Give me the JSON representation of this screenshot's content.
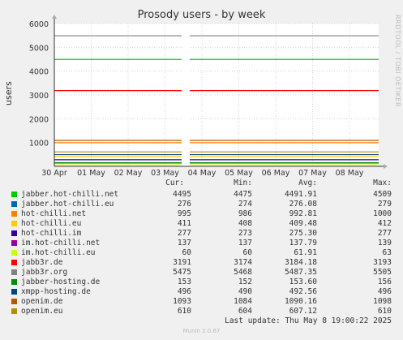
{
  "title": "Prosody users - by week",
  "ylabel": "users",
  "side_text": "RRDTOOL / TOBI OETIKER",
  "munin": "Munin 2.0.67",
  "last_update": "Last update: Thu May  8 19:00:22 2025",
  "legend_headers": {
    "cur": "Cur:",
    "min": "Min:",
    "avg": "Avg:",
    "max": "Max:"
  },
  "chart_data": {
    "type": "line",
    "title": "Prosody users - by week",
    "ylabel": "users",
    "xlabel": "",
    "ylim": [
      0,
      6000
    ],
    "yticks": [
      1000,
      2000,
      3000,
      4000,
      5000,
      6000
    ],
    "ytick_labels": [
      "1000",
      "2000",
      "3000",
      "4000",
      "5000",
      "6000"
    ],
    "x_labels": [
      "30 Apr",
      "01 May",
      "02 May",
      "03 May",
      "04 May",
      "05 May",
      "06 May",
      "07 May",
      "08 May"
    ],
    "grid": true,
    "series": [
      {
        "name": "jabber.hot-chilli.net",
        "color": "#00cc00",
        "cur": "4495",
        "min": "4475",
        "avg": "4491.91",
        "max": "4509",
        "value": 4492
      },
      {
        "name": "jabber.hot-chilli.eu",
        "color": "#0066b3",
        "cur": "276",
        "min": "274",
        "avg": "276.08",
        "max": "279",
        "value": 276
      },
      {
        "name": "hot-chilli.net",
        "color": "#ff8000",
        "cur": "995",
        "min": "986",
        "avg": "992.81",
        "max": "1000",
        "value": 993
      },
      {
        "name": "hot-chilli.eu",
        "color": "#ffcc00",
        "cur": "411",
        "min": "408",
        "avg": "409.48",
        "max": "412",
        "value": 409
      },
      {
        "name": "hot-chilli.im",
        "color": "#330099",
        "cur": "277",
        "min": "273",
        "avg": "275.30",
        "max": "277",
        "value": 275
      },
      {
        "name": "im.hot-chilli.net",
        "color": "#990099",
        "cur": "137",
        "min": "137",
        "avg": "137.79",
        "max": "139",
        "value": 138
      },
      {
        "name": "im.hot-chilli.eu",
        "color": "#ccff00",
        "cur": "60",
        "min": "60",
        "avg": "61.91",
        "max": "63",
        "value": 62
      },
      {
        "name": "jabb3r.de",
        "color": "#ff0000",
        "cur": "3191",
        "min": "3174",
        "avg": "3184.18",
        "max": "3193",
        "value": 3184
      },
      {
        "name": "jabb3r.org",
        "color": "#808080",
        "cur": "5475",
        "min": "5468",
        "avg": "5487.35",
        "max": "5505",
        "value": 5487
      },
      {
        "name": "jabber-hosting.de",
        "color": "#008f00",
        "cur": "153",
        "min": "152",
        "avg": "153.60",
        "max": "156",
        "value": 154
      },
      {
        "name": "xmpp-hosting.de",
        "color": "#00487d",
        "cur": "496",
        "min": "490",
        "avg": "492.56",
        "max": "496",
        "value": 493
      },
      {
        "name": "openim.de",
        "color": "#b35a00",
        "cur": "1093",
        "min": "1084",
        "avg": "1090.16",
        "max": "1098",
        "value": 1090
      },
      {
        "name": "openim.eu",
        "color": "#b38f00",
        "cur": "610",
        "min": "604",
        "avg": "607.12",
        "max": "610",
        "value": 607
      }
    ]
  }
}
